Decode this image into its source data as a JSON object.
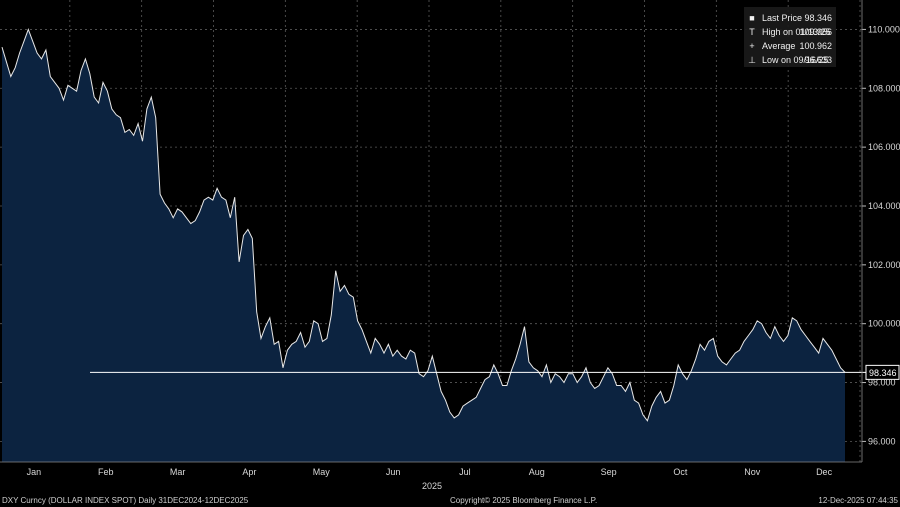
{
  "chart_data": {
    "type": "area",
    "xlabel": "2025",
    "ylim": [
      95.3,
      111.0
    ],
    "y_ticks": [
      96,
      98,
      100,
      102,
      104,
      106,
      108,
      110
    ],
    "y_tick_labels": [
      "96.000",
      "98.000",
      "100.000",
      "102.000",
      "104.000",
      "106.000",
      "108.000",
      "110.000"
    ],
    "x_tick_labels": [
      "Jan",
      "Feb",
      "Mar",
      "Apr",
      "May",
      "Jun",
      "Jul",
      "Aug",
      "Sep",
      "Oct",
      "Nov",
      "Dec"
    ],
    "grid": true,
    "legend_position": "top-right",
    "colors": {
      "fill": "#0c2340",
      "line": "#e8e8e8",
      "grid": "#5a5a5a",
      "background": "#000000"
    },
    "last_price_line": {
      "value": 98.346,
      "label": "98.346"
    },
    "legend": [
      {
        "marker": "■",
        "label": "Last Price",
        "value": "98.346"
      },
      {
        "marker": "T",
        "label": "High on 01/13/25",
        "value": "109.956"
      },
      {
        "marker": "+",
        "label": "Average",
        "value": "100.962"
      },
      {
        "marker": "⊥",
        "label": "Low on 09/16/25",
        "value": "96.633"
      }
    ],
    "series": [
      {
        "values": [
          109.4,
          108.9,
          108.4,
          108.7,
          109.2,
          109.6,
          110.0,
          109.6,
          109.2,
          109.0,
          109.3,
          108.4,
          108.2,
          108.0,
          107.6,
          108.1,
          108.0,
          107.9,
          108.6,
          109.0,
          108.5,
          107.7,
          107.5,
          108.2,
          107.9,
          107.3,
          107.1,
          107.0,
          106.5,
          106.6,
          106.4,
          106.8,
          106.2,
          107.3,
          107.7,
          107.0,
          104.4,
          104.1,
          103.9,
          103.6,
          103.9,
          103.8,
          103.6,
          103.4,
          103.5,
          103.8,
          104.2,
          104.3,
          104.2,
          104.6,
          104.3,
          104.2,
          103.6,
          104.3,
          102.1,
          103.0,
          103.2,
          102.9,
          100.4,
          99.5,
          99.9,
          100.2,
          99.3,
          99.4,
          98.5,
          99.1,
          99.3,
          99.4,
          99.7,
          99.2,
          99.4,
          100.1,
          100.0,
          99.4,
          99.5,
          100.3,
          101.8,
          101.1,
          101.3,
          101.0,
          100.9,
          100.1,
          99.8,
          99.4,
          99.0,
          99.5,
          99.3,
          99.0,
          99.3,
          98.9,
          99.1,
          98.9,
          98.8,
          99.1,
          99.0,
          98.3,
          98.2,
          98.4,
          98.9,
          98.3,
          97.7,
          97.4,
          97.0,
          96.8,
          96.9,
          97.2,
          97.3,
          97.4,
          97.5,
          97.8,
          98.1,
          98.2,
          98.6,
          98.3,
          97.9,
          97.9,
          98.4,
          98.8,
          99.3,
          99.9,
          98.7,
          98.5,
          98.4,
          98.2,
          98.6,
          98.0,
          98.3,
          98.2,
          98.0,
          98.3,
          98.3,
          98.0,
          98.2,
          98.5,
          98.0,
          97.8,
          97.9,
          98.2,
          98.5,
          98.3,
          97.9,
          97.9,
          97.7,
          98.0,
          97.4,
          97.3,
          96.9,
          96.7,
          97.2,
          97.5,
          97.7,
          97.3,
          97.4,
          97.9,
          98.6,
          98.3,
          98.1,
          98.4,
          98.8,
          99.3,
          99.1,
          99.4,
          99.5,
          98.9,
          98.7,
          98.6,
          98.8,
          99.0,
          99.1,
          99.4,
          99.6,
          99.8,
          100.1,
          100.0,
          99.7,
          99.5,
          99.9,
          99.6,
          99.4,
          99.6,
          100.2,
          100.1,
          99.8,
          99.6,
          99.4,
          99.2,
          99.0,
          99.5,
          99.3,
          99.1,
          98.8,
          98.5,
          98.346
        ]
      }
    ]
  },
  "footer": {
    "left": "DXY Curncy (DOLLAR INDEX SPOT) Daily 31DEC2024-12DEC2025",
    "center": "Copyright© 2025 Bloomberg Finance L.P.",
    "right": "12-Dec-2025 07:44:35"
  }
}
